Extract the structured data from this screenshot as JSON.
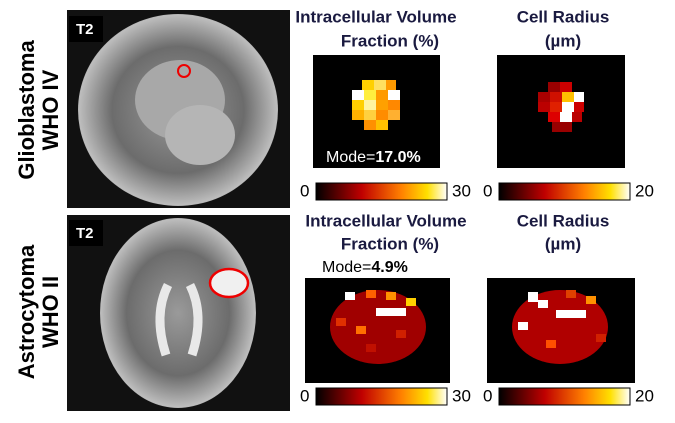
{
  "rows": [
    {
      "label": [
        "Glioblastoma",
        "WHO IV"
      ],
      "image_tag": "T2",
      "titles": [
        [
          "Intracellular Volume",
          "Fraction (%)"
        ],
        [
          "Cell Radius",
          "(µm)"
        ]
      ],
      "mode_prefix": "Mode=",
      "mode_value": "17.0%",
      "colorbars": [
        {
          "min": "0",
          "max": "30"
        },
        {
          "min": "0",
          "max": "20"
        }
      ]
    },
    {
      "label": [
        "Astrocytoma",
        "WHO II"
      ],
      "image_tag": "T2",
      "titles": [
        [
          "Intracellular Volume",
          "Fraction (%)"
        ],
        [
          "Cell Radius",
          "(µm)"
        ]
      ],
      "mode_prefix": "Mode=",
      "mode_value": "4.9%",
      "colorbars": [
        {
          "min": "0",
          "max": "30"
        },
        {
          "min": "0",
          "max": "20"
        }
      ]
    }
  ]
}
